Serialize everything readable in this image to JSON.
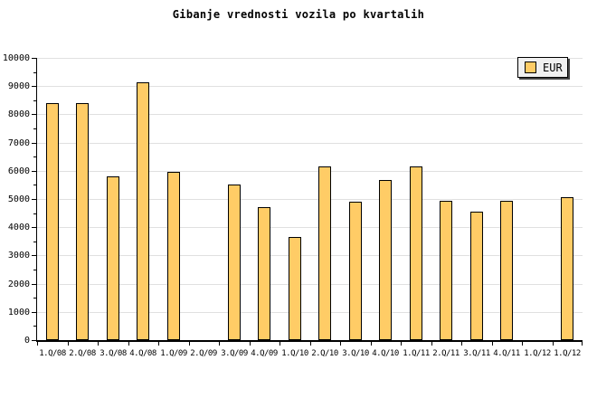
{
  "title": "Gibanje vrednosti vozila po kvartalih",
  "legend": {
    "label": "EUR",
    "position": "top-right"
  },
  "colors": {
    "bar_fill": "#ffcc66",
    "bar_border": "#000000",
    "gridline": "#e0e0e0",
    "axis": "#000000",
    "legend_bg": "#f0f0f0",
    "background": "#ffffff"
  },
  "chart_data": {
    "type": "bar",
    "title": "Gibanje vrednosti vozila po kvartalih",
    "xlabel": "",
    "ylabel": "",
    "categories": [
      "1.Q/08",
      "2.Q/08",
      "3.Q/08",
      "4.Q/08",
      "1.Q/09",
      "2.Q/09",
      "3.Q/09",
      "4.Q/09",
      "1.Q/10",
      "2.Q/10",
      "3.Q/10",
      "4.Q/10",
      "1.Q/11",
      "2.Q/11",
      "3.Q/11",
      "4.Q/11",
      "1.Q/12",
      "1.Q/12"
    ],
    "series": [
      {
        "name": "EUR",
        "values": [
          8400,
          8400,
          5800,
          9150,
          5950,
          null,
          5500,
          4700,
          3650,
          6150,
          4900,
          5680,
          6150,
          4950,
          4550,
          4950,
          null,
          5050
        ]
      }
    ],
    "ylim": [
      0,
      10000
    ],
    "ytick_step": 1000,
    "ytick_minor_step": 500,
    "yticklabels": [
      "0",
      "1000",
      "2000",
      "3000",
      "4000",
      "5000",
      "6000",
      "7000",
      "8000",
      "9000",
      "10000"
    ],
    "grid": true,
    "legend_position": "top-right"
  }
}
